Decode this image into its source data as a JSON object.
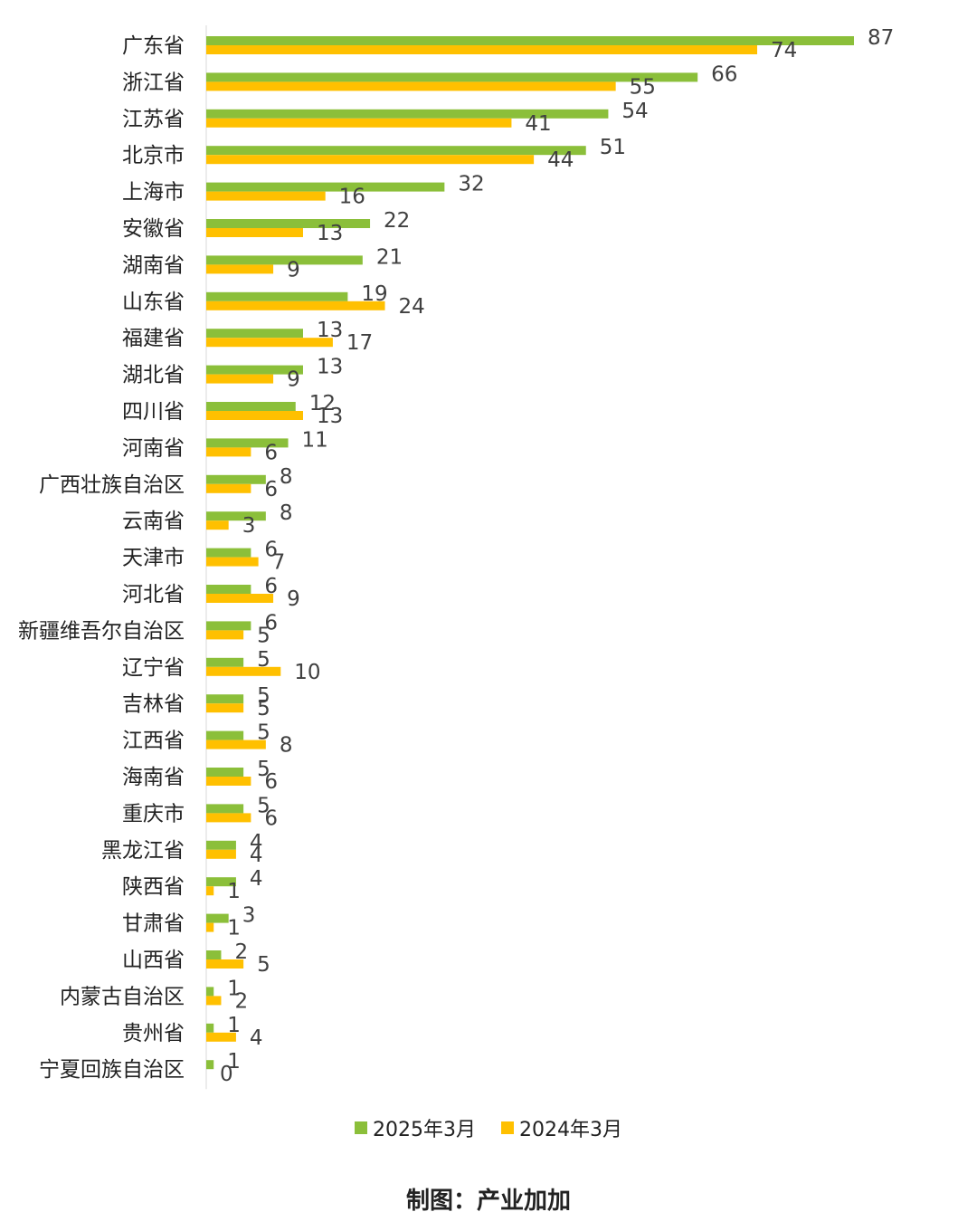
{
  "chart_data": {
    "type": "bar",
    "orientation": "horizontal",
    "categories": [
      "广东省",
      "浙江省",
      "江苏省",
      "北京市",
      "上海市",
      "安徽省",
      "湖南省",
      "山东省",
      "福建省",
      "湖北省",
      "四川省",
      "河南省",
      "广西壮族自治区",
      "云南省",
      "天津市",
      "河北省",
      "新疆维吾尔自治区",
      "辽宁省",
      "吉林省",
      "江西省",
      "海南省",
      "重庆市",
      "黑龙江省",
      "陕西省",
      "甘肃省",
      "山西省",
      "内蒙古自治区",
      "贵州省",
      "宁夏回族自治区"
    ],
    "series": [
      {
        "name": "2025年3月",
        "color": "#8BBF3A",
        "values": [
          87,
          66,
          54,
          51,
          32,
          22,
          21,
          19,
          13,
          13,
          12,
          11,
          8,
          8,
          6,
          6,
          6,
          5,
          5,
          5,
          5,
          5,
          4,
          4,
          3,
          2,
          1,
          1,
          1
        ]
      },
      {
        "name": "2024年3月",
        "color": "#FFC000",
        "values": [
          74,
          55,
          41,
          44,
          16,
          13,
          9,
          24,
          17,
          9,
          13,
          6,
          6,
          3,
          7,
          9,
          5,
          10,
          5,
          8,
          6,
          6,
          4,
          1,
          1,
          5,
          2,
          4,
          0
        ]
      }
    ],
    "title": "",
    "xlabel": "",
    "ylabel": "",
    "xlim": [
      0,
      87
    ],
    "grid": false,
    "legend_position": "bottom",
    "data_labels": true
  },
  "legend": {
    "items": [
      {
        "label": "2025年3月",
        "color": "#8BBF3A"
      },
      {
        "label": "2024年3月",
        "color": "#FFC000"
      }
    ]
  },
  "credit": {
    "text": "制图：产业加加"
  }
}
